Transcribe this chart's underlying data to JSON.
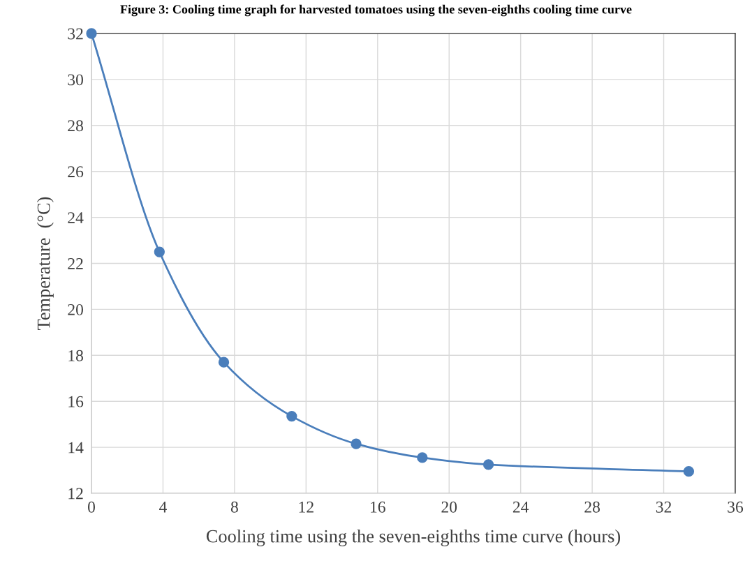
{
  "chart_data": {
    "type": "line",
    "title": "Figure 3: Cooling time graph for harvested tomatoes using the seven-eighths cooling time curve",
    "xlabel": "Cooling time using the seven-eighths time curve (hours)",
    "ylabel": "Temperature  (°C)",
    "series": [
      {
        "color": "#4a7ebb",
        "x": [
          0,
          3.8,
          7.4,
          11.2,
          14.8,
          18.5,
          22.2,
          33.4
        ],
        "values": [
          32,
          22.5,
          17.7,
          15.35,
          14.15,
          13.55,
          13.25,
          12.95
        ]
      }
    ],
    "xlim": [
      0,
      36
    ],
    "xticks": [
      0,
      4,
      8,
      12,
      16,
      20,
      24,
      28,
      32,
      36
    ],
    "ylim": [
      12,
      32
    ],
    "yticks": [
      12,
      14,
      16,
      18,
      20,
      22,
      24,
      26,
      28,
      30,
      32
    ],
    "grid": true,
    "marker": "circle",
    "line_style": "solid",
    "legend": false
  }
}
